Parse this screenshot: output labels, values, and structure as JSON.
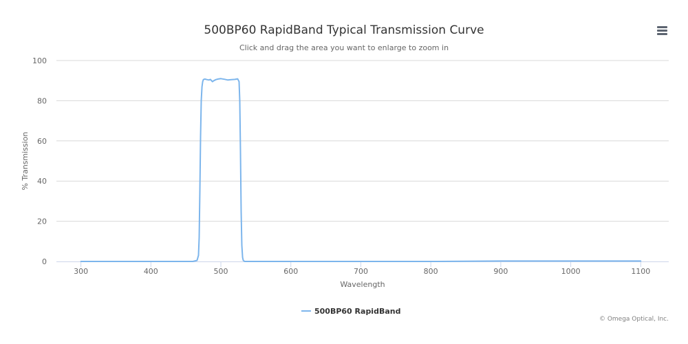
{
  "menu_icon": "hamburger-menu-icon",
  "credits": "© Omega Optical, Inc.",
  "colors": {
    "series": "#7cb5ec",
    "grid": "#d8d8d8",
    "axis_line": "#ccd6eb",
    "title": "#333333",
    "labels": "#666666"
  },
  "chart_data": {
    "type": "line",
    "title": "500BP60 RapidBand Typical Transmission Curve",
    "subtitle": "Click and drag the area you want to enlarge to zoom in",
    "xlabel": "Wavelength",
    "ylabel": "% Transmission",
    "xlim": [
      265,
      1140
    ],
    "ylim": [
      0,
      100
    ],
    "xticks": [
      300,
      400,
      500,
      600,
      700,
      800,
      900,
      1000,
      1100
    ],
    "yticks": [
      0,
      20,
      40,
      60,
      80,
      100
    ],
    "grid": true,
    "legend_position": "bottom-center",
    "series": [
      {
        "name": "500BP60 RapidBand",
        "x": [
          300,
          400,
          460,
          466,
          468,
          469,
          470,
          471,
          472,
          473,
          474,
          475,
          477,
          480,
          483,
          485,
          488,
          490,
          493,
          496,
          500,
          505,
          510,
          515,
          520,
          524,
          526,
          527,
          528,
          529,
          530,
          531,
          532,
          534,
          540,
          600,
          700,
          800,
          900,
          1000,
          1100
        ],
        "y": [
          0,
          0,
          0,
          0.5,
          3,
          12,
          35,
          62,
          80,
          87,
          89.5,
          90.5,
          90.8,
          90.5,
          90.3,
          90.6,
          89.5,
          90,
          90.5,
          90.8,
          91,
          90.7,
          90.3,
          90.5,
          90.6,
          90.9,
          89.5,
          80,
          55,
          25,
          8,
          2,
          0.5,
          0,
          0,
          0,
          0,
          0,
          0.2,
          0.2,
          0.2
        ]
      }
    ]
  }
}
